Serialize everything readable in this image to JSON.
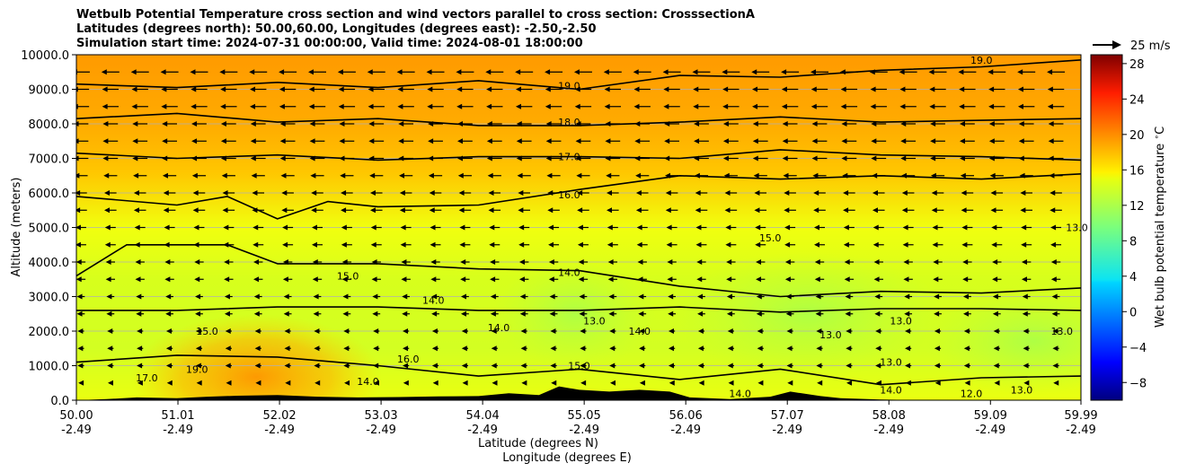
{
  "chart_data": {
    "type": "heatmap",
    "title_lines": [
      "Wetbulb Potential Temperature cross section and wind vectors parallel to cross section: CrosssectionA",
      "Latitudes (degrees north): 50.00,60.00, Longitudes (degrees east): -2.50,-2.50",
      "Simulation start time: 2024-07-31 00:00:00, Valid time: 2024-08-01 18:00:00"
    ],
    "xlabel_lat": "Latitude (degrees N)",
    "xlabel_lon": "Longitude (degrees E)",
    "ylabel": "Altitude (meters)",
    "colorbar_label": "Wet bulb potential temperature $^\\circ$C",
    "quiver_key_label": "25 m/s",
    "xlim": [
      50.0,
      59.99
    ],
    "ylim": [
      0,
      10000
    ],
    "x_ticks": [
      {
        "lat": "50.00",
        "lon": "-2.49",
        "v": 50.0
      },
      {
        "lat": "51.01",
        "lon": "-2.49",
        "v": 51.01
      },
      {
        "lat": "52.02",
        "lon": "-2.49",
        "v": 52.02
      },
      {
        "lat": "53.03",
        "lon": "-2.49",
        "v": 53.03
      },
      {
        "lat": "54.04",
        "lon": "-2.49",
        "v": 54.04
      },
      {
        "lat": "55.05",
        "lon": "-2.49",
        "v": 55.05
      },
      {
        "lat": "56.06",
        "lon": "-2.49",
        "v": 56.06
      },
      {
        "lat": "57.07",
        "lon": "-2.49",
        "v": 57.07
      },
      {
        "lat": "58.08",
        "lon": "-2.49",
        "v": 58.08
      },
      {
        "lat": "59.09",
        "lon": "-2.49",
        "v": 59.09
      },
      {
        "lat": "59.99",
        "lon": "-2.49",
        "v": 59.99
      }
    ],
    "y_ticks": [
      {
        "label": "0.0",
        "v": 0
      },
      {
        "label": "1000.0",
        "v": 1000
      },
      {
        "label": "2000.0",
        "v": 2000
      },
      {
        "label": "3000.0",
        "v": 3000
      },
      {
        "label": "4000.0",
        "v": 4000
      },
      {
        "label": "5000.0",
        "v": 5000
      },
      {
        "label": "6000.0",
        "v": 6000
      },
      {
        "label": "7000.0",
        "v": 7000
      },
      {
        "label": "8000.0",
        "v": 8000
      },
      {
        "label": "9000.0",
        "v": 9000
      },
      {
        "label": "10000.0",
        "v": 10000
      }
    ],
    "colorbar": {
      "range": [
        -10,
        29
      ],
      "ticks": [
        {
          "label": "−8",
          "v": -8
        },
        {
          "label": "−4",
          "v": -4
        },
        {
          "label": "0",
          "v": 0
        },
        {
          "label": "4",
          "v": 4
        },
        {
          "label": "8",
          "v": 8
        },
        {
          "label": "12",
          "v": 12
        },
        {
          "label": "16",
          "v": 16
        },
        {
          "label": "20",
          "v": 20
        },
        {
          "label": "24",
          "v": 24
        },
        {
          "label": "28",
          "v": 28
        }
      ]
    },
    "grid": "horizontal",
    "colormap": "jet",
    "contours": [
      {
        "level": 19.0,
        "label": "19.0",
        "points": [
          [
            50.0,
            9150
          ],
          [
            51.0,
            9050
          ],
          [
            52.0,
            9200
          ],
          [
            53.0,
            9050
          ],
          [
            54.0,
            9250
          ],
          [
            55.0,
            9000
          ],
          [
            56.0,
            9400
          ],
          [
            57.0,
            9350
          ],
          [
            58.0,
            9550
          ],
          [
            59.0,
            9650
          ],
          [
            59.99,
            9850
          ]
        ]
      },
      {
        "level": 18.0,
        "label": "18.0",
        "points": [
          [
            50.0,
            8150
          ],
          [
            51.0,
            8300
          ],
          [
            52.0,
            8050
          ],
          [
            53.0,
            8150
          ],
          [
            54.0,
            7950
          ],
          [
            55.0,
            7950
          ],
          [
            56.0,
            8050
          ],
          [
            57.0,
            8200
          ],
          [
            58.0,
            8050
          ],
          [
            59.0,
            8100
          ],
          [
            59.99,
            8150
          ]
        ]
      },
      {
        "level": 17.0,
        "label": "17.0",
        "points": [
          [
            50.0,
            7150
          ],
          [
            51.0,
            7000
          ],
          [
            52.0,
            7100
          ],
          [
            53.0,
            6950
          ],
          [
            54.0,
            7050
          ],
          [
            55.0,
            7050
          ],
          [
            56.0,
            7000
          ],
          [
            57.0,
            7250
          ],
          [
            58.0,
            7100
          ],
          [
            59.0,
            7050
          ],
          [
            59.99,
            6950
          ]
        ]
      },
      {
        "level": 16.0,
        "label": "16.0",
        "points": [
          [
            50.0,
            5900
          ],
          [
            51.0,
            5650
          ],
          [
            51.5,
            5900
          ],
          [
            52.0,
            5250
          ],
          [
            52.5,
            5750
          ],
          [
            53.0,
            5600
          ],
          [
            54.0,
            5650
          ],
          [
            55.0,
            6100
          ],
          [
            56.0,
            6500
          ],
          [
            57.0,
            6400
          ],
          [
            58.0,
            6500
          ],
          [
            59.0,
            6400
          ],
          [
            59.99,
            6550
          ]
        ]
      },
      {
        "level": 14.0,
        "label": "14.0",
        "points": [
          [
            50.0,
            3600
          ],
          [
            50.5,
            4500
          ],
          [
            51.5,
            4500
          ],
          [
            52.0,
            3950
          ],
          [
            53.0,
            3950
          ],
          [
            54.0,
            3800
          ],
          [
            55.0,
            3750
          ],
          [
            56.0,
            3300
          ],
          [
            57.0,
            3000
          ],
          [
            58.0,
            3150
          ],
          [
            59.0,
            3100
          ],
          [
            59.99,
            3250
          ]
        ]
      },
      {
        "level": 15.0,
        "label": "15.0",
        "points": [
          [
            50.0,
            2600
          ],
          [
            51.0,
            2600
          ],
          [
            52.0,
            2700
          ],
          [
            53.0,
            2700
          ],
          [
            54.0,
            2600
          ],
          [
            55.0,
            2600
          ],
          [
            56.0,
            2700
          ],
          [
            57.0,
            2550
          ],
          [
            58.0,
            2650
          ],
          [
            59.0,
            2650
          ],
          [
            59.99,
            2600
          ]
        ]
      },
      {
        "level": 13.0,
        "label": "13.0",
        "points": [
          [
            50.0,
            1100
          ],
          [
            51.0,
            1300
          ],
          [
            52.0,
            1250
          ],
          [
            53.0,
            1000
          ],
          [
            54.0,
            700
          ],
          [
            55.0,
            900
          ],
          [
            56.0,
            600
          ],
          [
            57.0,
            900
          ],
          [
            58.0,
            450
          ],
          [
            59.0,
            650
          ],
          [
            59.99,
            700
          ]
        ]
      }
    ],
    "contour_labels": [
      {
        "text": "19.0",
        "x": 54.9,
        "y": 9100
      },
      {
        "text": "18.0",
        "x": 54.9,
        "y": 8050
      },
      {
        "text": "17.0",
        "x": 54.9,
        "y": 7050
      },
      {
        "text": "16.0",
        "x": 54.9,
        "y": 5950
      },
      {
        "text": "14.0",
        "x": 54.9,
        "y": 3700
      },
      {
        "text": "14.0",
        "x": 53.55,
        "y": 2900
      },
      {
        "text": "15.0",
        "x": 51.3,
        "y": 2000
      },
      {
        "text": "13.0",
        "x": 57.5,
        "y": 1900
      },
      {
        "text": "14.0",
        "x": 55.6,
        "y": 2000
      },
      {
        "text": "13.0",
        "x": 58.2,
        "y": 2300
      },
      {
        "text": "13.0",
        "x": 59.8,
        "y": 2000
      },
      {
        "text": "15.0",
        "x": 52.7,
        "y": 3600
      },
      {
        "text": "15.0",
        "x": 56.9,
        "y": 4700
      },
      {
        "text": "13.0",
        "x": 59.95,
        "y": 5000
      },
      {
        "text": "19.0",
        "x": 59.0,
        "y": 9850
      },
      {
        "text": "19.0",
        "x": 51.2,
        "y": 900
      },
      {
        "text": "17.0",
        "x": 50.7,
        "y": 650
      },
      {
        "text": "16.0",
        "x": 53.3,
        "y": 1200
      },
      {
        "text": "14.0",
        "x": 52.9,
        "y": 550
      },
      {
        "text": "13.0",
        "x": 55.15,
        "y": 2300
      },
      {
        "text": "14.0",
        "x": 54.2,
        "y": 2100
      },
      {
        "text": "15.0",
        "x": 55.0,
        "y": 1000
      },
      {
        "text": "14.0",
        "x": 56.6,
        "y": 200
      },
      {
        "text": "13.0",
        "x": 58.1,
        "y": 1100
      },
      {
        "text": "14.0",
        "x": 58.1,
        "y": 300
      },
      {
        "text": "13.0",
        "x": 59.4,
        "y": 300
      },
      {
        "text": "12.0",
        "x": 58.9,
        "y": 200
      }
    ],
    "wind": {
      "description_direction": "westward (pointing to decreasing latitude)",
      "levels": [
        {
          "y": 9500,
          "speed": 10
        },
        {
          "y": 9000,
          "speed": 9
        },
        {
          "y": 8500,
          "speed": 9
        },
        {
          "y": 8000,
          "speed": 8
        },
        {
          "y": 7500,
          "speed": 8
        },
        {
          "y": 7000,
          "speed": 8
        },
        {
          "y": 6500,
          "speed": 7
        },
        {
          "y": 6000,
          "speed": 6
        },
        {
          "y": 5500,
          "speed": 6
        },
        {
          "y": 5000,
          "speed": 5
        },
        {
          "y": 4500,
          "speed": 5
        },
        {
          "y": 4000,
          "speed": 4
        },
        {
          "y": 3500,
          "speed": 4
        },
        {
          "y": 3000,
          "speed": 3
        },
        {
          "y": 2500,
          "speed": 3
        },
        {
          "y": 2000,
          "speed": 2
        },
        {
          "y": 1500,
          "speed": 2
        },
        {
          "y": 1000,
          "speed": 2
        },
        {
          "y": 500,
          "speed": 1
        }
      ]
    },
    "terrain": [
      [
        50.0,
        0
      ],
      [
        50.3,
        30
      ],
      [
        50.6,
        80
      ],
      [
        51.0,
        60
      ],
      [
        51.3,
        100
      ],
      [
        51.6,
        130
      ],
      [
        52.0,
        150
      ],
      [
        52.4,
        100
      ],
      [
        52.8,
        80
      ],
      [
        53.2,
        90
      ],
      [
        53.6,
        110
      ],
      [
        54.0,
        120
      ],
      [
        54.3,
        200
      ],
      [
        54.6,
        150
      ],
      [
        54.8,
        400
      ],
      [
        55.0,
        300
      ],
      [
        55.3,
        250
      ],
      [
        55.6,
        300
      ],
      [
        55.9,
        250
      ],
      [
        56.1,
        80
      ],
      [
        56.5,
        30
      ],
      [
        56.9,
        100
      ],
      [
        57.1,
        250
      ],
      [
        57.4,
        120
      ],
      [
        57.6,
        60
      ],
      [
        58.0,
        20
      ],
      [
        58.5,
        0
      ],
      [
        59.99,
        0
      ]
    ]
  }
}
